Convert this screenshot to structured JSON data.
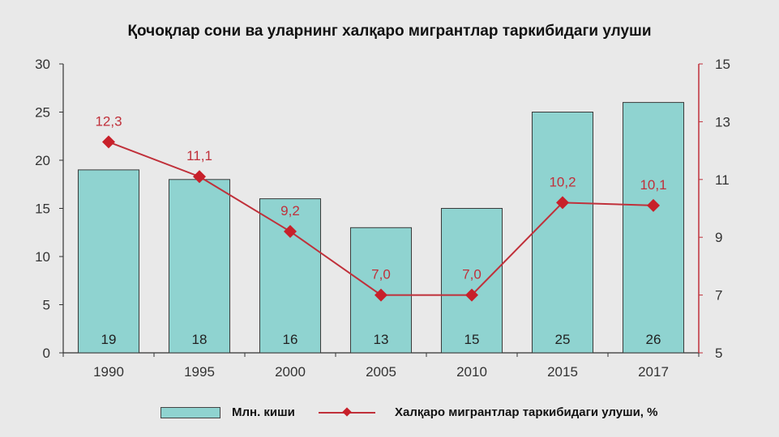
{
  "title": "Қочоқлар сони ва уларнинг халқаро мигрантлар таркибидаги улуши",
  "legend": {
    "bars_label": "Млн. киши",
    "line_label": "Халқаро мигрантлар таркибидаги улуши, %"
  },
  "colors": {
    "bar_fill": "#8fd3d0",
    "bar_stroke": "#3a3a3a",
    "line": "#c0303a",
    "marker": "#c8202a",
    "background": "#e9e9e9",
    "right_axis": "#c0303a"
  },
  "chart_data": {
    "type": "bar",
    "categories": [
      "1990",
      "1995",
      "2000",
      "2005",
      "2010",
      "2015",
      "2017"
    ],
    "series": [
      {
        "name": "Млн. киши",
        "type": "bar",
        "axis": "left",
        "values": [
          19,
          18,
          16,
          13,
          15,
          25,
          26
        ],
        "labels": [
          "19",
          "18",
          "16",
          "13",
          "15",
          "25",
          "26"
        ]
      },
      {
        "name": "Халқаро мигрантлар таркибидаги улуши, %",
        "type": "line",
        "axis": "right",
        "values": [
          12.3,
          11.1,
          9.2,
          7.0,
          7.0,
          10.2,
          10.1
        ],
        "labels": [
          "12,3",
          "11,1",
          "9,2",
          "7,0",
          "7,0",
          "10,2",
          "10,1"
        ]
      }
    ],
    "y_left": {
      "ylim": [
        0,
        30
      ],
      "ticks": [
        "0",
        "5",
        "10",
        "15",
        "20",
        "25",
        "30"
      ]
    },
    "y_right": {
      "ylim": [
        5,
        15
      ],
      "ticks": [
        "5",
        "7",
        "9",
        "11",
        "13",
        "15"
      ]
    },
    "grid": false,
    "legend_position": "bottom"
  }
}
